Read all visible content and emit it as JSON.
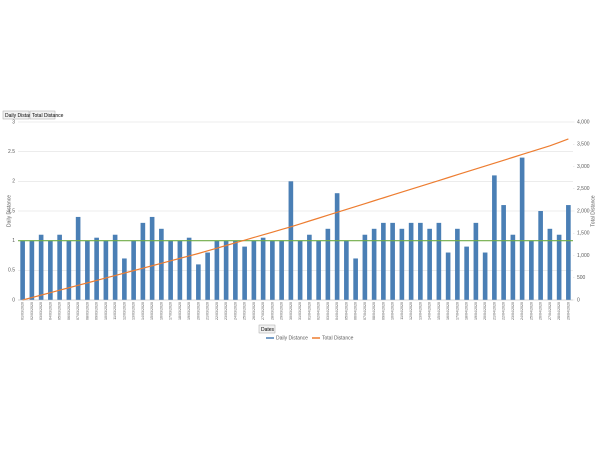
{
  "chart_data": {
    "type": "bar_line",
    "field_buttons": [
      "Daily Distance",
      "Total Distance"
    ],
    "axis_field_button": "Dates",
    "y_label": "Daily Distance",
    "y2_label": "Total Distance",
    "categories": [
      "01/03/2020",
      "02/03/2020",
      "03/03/2020",
      "04/03/2020",
      "05/03/2020",
      "06/03/2020",
      "07/03/2020",
      "08/03/2020",
      "09/03/2020",
      "10/03/2020",
      "11/03/2020",
      "12/03/2020",
      "13/03/2020",
      "14/03/2020",
      "15/03/2020",
      "16/03/2020",
      "17/03/2020",
      "18/03/2020",
      "19/03/2020",
      "20/03/2020",
      "21/03/2020",
      "22/03/2020",
      "23/03/2020",
      "24/03/2020",
      "25/03/2020",
      "26/03/2020",
      "27/03/2020",
      "28/03/2020",
      "29/03/2020",
      "30/03/2020",
      "31/03/2020",
      "01/04/2020",
      "02/04/2020",
      "03/04/2020",
      "04/04/2020",
      "05/04/2020",
      "06/04/2020",
      "07/04/2020",
      "08/04/2020",
      "09/04/2020",
      "10/04/2020",
      "11/04/2020",
      "12/04/2020",
      "13/04/2020",
      "14/04/2020",
      "15/04/2020",
      "16/04/2020",
      "17/04/2020",
      "18/04/2020",
      "19/04/2020",
      "20/04/2020",
      "21/04/2020",
      "22/04/2020",
      "23/04/2020",
      "24/04/2020",
      "25/04/2020",
      "26/04/2020",
      "27/04/2020",
      "28/04/2020",
      "29/04/2020"
    ],
    "series": [
      {
        "name": "Daily Distance",
        "color": "#4a7fb5",
        "type": "bar",
        "values": [
          1.0,
          1.0,
          1.1,
          1.0,
          1.1,
          1.0,
          1.4,
          1.0,
          1.05,
          1.0,
          1.1,
          0.7,
          1.0,
          1.3,
          1.4,
          1.2,
          1.0,
          1.0,
          1.05,
          0.6,
          0.8,
          1.0,
          1.0,
          1.0,
          0.9,
          1.0,
          1.05,
          1.0,
          1.0,
          2.0,
          1.0,
          1.1,
          1.0,
          1.2,
          1.8,
          1.0,
          0.7,
          1.1,
          1.2,
          1.3,
          1.3,
          1.2,
          1.3,
          1.3,
          1.2,
          1.3,
          0.8,
          1.2,
          0.9,
          1.3,
          0.8,
          2.1,
          1.6,
          1.1,
          2.4,
          1.0,
          1.5,
          1.2,
          1.1,
          1.6
        ]
      },
      {
        "name": "Total Distance",
        "color": "#ed7d31",
        "type": "line",
        "axis": "y2",
        "values": [
          0,
          55,
          110,
          165,
          220,
          275,
          330,
          385,
          440,
          495,
          550,
          605,
          660,
          715,
          770,
          825,
          880,
          935,
          990,
          1045,
          1105,
          1165,
          1225,
          1285,
          1345,
          1405,
          1465,
          1525,
          1585,
          1645,
          1710,
          1775,
          1840,
          1905,
          1970,
          2035,
          2100,
          2165,
          2230,
          2295,
          2360,
          2425,
          2490,
          2555,
          2620,
          2685,
          2750,
          2815,
          2880,
          2945,
          3010,
          3075,
          3140,
          3205,
          3270,
          3335,
          3400,
          3465,
          3540,
          3620
        ]
      }
    ],
    "reference_line": {
      "value": 1.0,
      "color": "#70ad47"
    },
    "ylim": [
      0,
      3
    ],
    "yticks": [
      0,
      0.5,
      1,
      1.5,
      2,
      2.5,
      3
    ],
    "y2lim": [
      0,
      4000
    ],
    "y2ticks": [
      0,
      500,
      {
        "value": 1000,
        "label": "1,000"
      },
      {
        "value": 1500,
        "label": "1,500"
      },
      {
        "value": 2000,
        "label": "2,000"
      },
      {
        "value": 2500,
        "label": "2,500"
      },
      {
        "value": 3000,
        "label": "3,000"
      },
      {
        "value": 3500,
        "label": "3,500"
      },
      {
        "value": 4000,
        "label": "4,000"
      }
    ],
    "grid": true,
    "legend": "bottom"
  }
}
